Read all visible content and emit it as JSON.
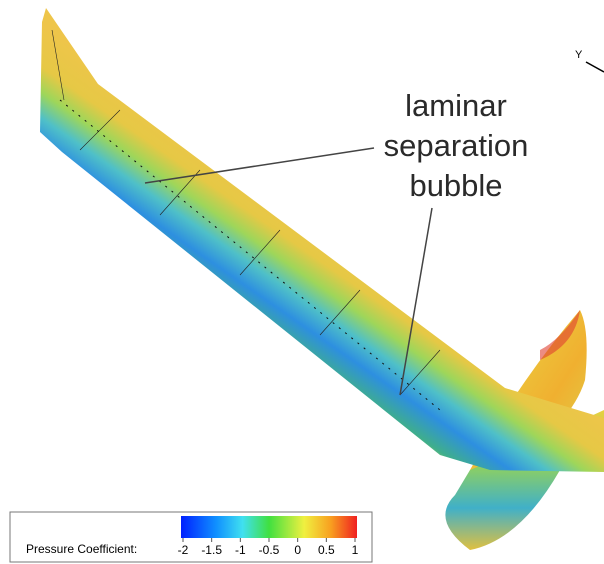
{
  "annotation": {
    "lines": [
      "laminar",
      "separation",
      "bubble"
    ]
  },
  "axis_label": "Y",
  "colorbar": {
    "label": "Pressure Coefficient:",
    "range": [
      -2,
      1
    ],
    "ticks": [
      -2,
      -1.5,
      -1,
      -0.5,
      0,
      0.5,
      1
    ]
  }
}
